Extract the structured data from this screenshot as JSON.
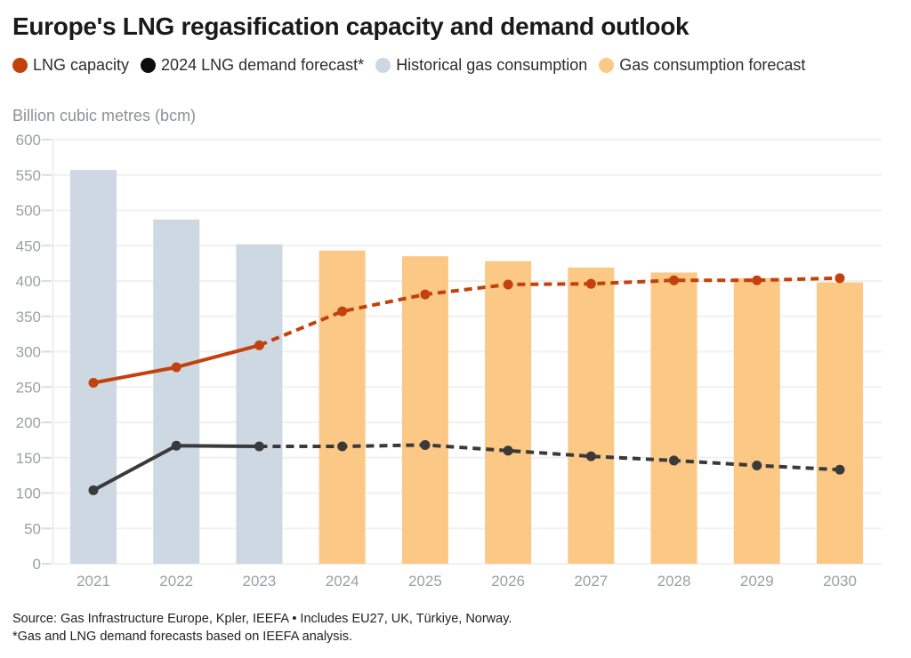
{
  "header": {
    "title": "Europe's LNG regasification capacity and demand outlook"
  },
  "legend": {
    "items": [
      {
        "label": "LNG capacity",
        "color": "#c2410c"
      },
      {
        "label": "2024 LNG demand forecast*",
        "color": "#0d0d0d"
      },
      {
        "label": "Historical gas consumption",
        "color": "#cdd8e2"
      },
      {
        "label": "Gas consumption forecast",
        "color": "#fbc885"
      }
    ]
  },
  "y_axis_title": "Billion cubic metres (bcm)",
  "footer": {
    "source_line": "Source: Gas Infrastructure Europe, Kpler, IEEFA • Includes EU27, UK, Türkiye, Norway.",
    "footnote_line": "*Gas and LNG demand forecasts based on IEEFA analysis."
  },
  "chart_data": {
    "type": "combo-bar-line",
    "title": "Europe's LNG regasification capacity and demand outlook",
    "ylabel": "Billion cubic metres (bcm)",
    "categories": [
      "2021",
      "2022",
      "2023",
      "2024",
      "2025",
      "2026",
      "2027",
      "2028",
      "2029",
      "2030"
    ],
    "y_axis": {
      "min": 0,
      "max": 600,
      "step": 50
    },
    "grid": true,
    "legend_position": "top",
    "bar_series": [
      {
        "name": "Historical gas consumption",
        "color": "#cdd8e2",
        "values": [
          557,
          487,
          452,
          null,
          null,
          null,
          null,
          null,
          null,
          null
        ]
      },
      {
        "name": "Gas consumption forecast",
        "color": "#fbc885",
        "values": [
          null,
          null,
          null,
          443,
          435,
          428,
          419,
          412,
          404,
          398
        ]
      }
    ],
    "line_series": [
      {
        "name": "LNG capacity",
        "color": "#c2410c",
        "style": "solid-then-dashed",
        "solid_through_index": 2,
        "values": [
          256,
          278,
          309,
          357,
          381,
          395,
          396,
          401,
          401,
          404
        ]
      },
      {
        "name": "2024 LNG demand forecast*",
        "color": "#3a3a3a",
        "style": "solid-then-dashed",
        "solid_through_index": 2,
        "values": [
          104,
          167,
          166,
          166,
          168,
          160,
          152,
          146,
          139,
          133
        ]
      }
    ]
  }
}
